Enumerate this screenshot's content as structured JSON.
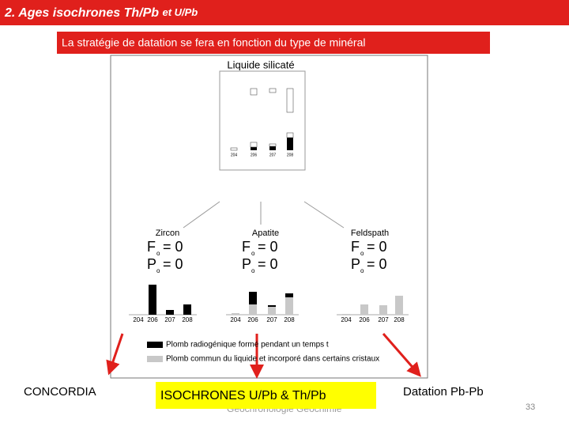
{
  "header": {
    "title": "2. Ages isochrones Th/Pb",
    "title_suffix": "et U/Pb"
  },
  "banner": "La stratégie de datation se fera en fonction du type de minéral",
  "figure": {
    "source_title": "Liquide silicaté",
    "isotopes": [
      "204",
      "206",
      "207",
      "208"
    ],
    "source_bars": {
      "liquid": [
        0,
        8,
        5,
        30
      ],
      "radiogenic": [
        0,
        4,
        5,
        16
      ],
      "common": [
        3,
        6,
        3,
        6
      ]
    },
    "minerals": [
      {
        "name": "Zircon",
        "conditions": [
          {
            "symbol": "F",
            "subscript": "o",
            "equals": "= 0"
          },
          {
            "symbol": "P",
            "subscript": "o",
            "equals": "= 0"
          }
        ],
        "radiogenic": [
          0,
          38,
          6,
          13
        ],
        "common": [
          0,
          0,
          0,
          0
        ]
      },
      {
        "name": "Apatite",
        "conditions": [
          {
            "symbol": "F",
            "subscript": "o",
            "equals": "= 0"
          },
          {
            "symbol": "P",
            "subscript": "o",
            "equals": "= 0"
          }
        ],
        "radiogenic": [
          0,
          16,
          2,
          5
        ],
        "common": [
          2,
          13,
          10,
          22
        ]
      },
      {
        "name": "Feldspath",
        "conditions": [
          {
            "symbol": "F",
            "subscript": "o",
            "equals": "= 0"
          },
          {
            "symbol": "P",
            "subscript": "o",
            "equals": "= 0"
          }
        ],
        "radiogenic": [
          0,
          0,
          0,
          0
        ],
        "common": [
          1,
          13,
          12,
          24
        ]
      }
    ],
    "legend": [
      {
        "label": "Plomb radiogénique formé pendant un temps t",
        "color": "#000000"
      },
      {
        "label": "Plomb commun du liquide et incorporé dans certains cristaux",
        "color": "#c8c8c8"
      }
    ]
  },
  "targets": [
    "CONCORDIA",
    "ISOCHRONES U/Pb & Th/Pb",
    "Datation Pb-Pb"
  ],
  "footer": "Géochronologie Géochimie",
  "page_number": "33"
}
